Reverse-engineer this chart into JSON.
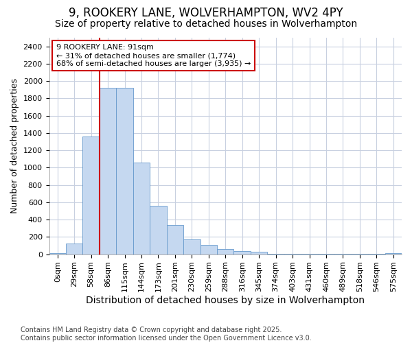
{
  "title_line1": "9, ROOKERY LANE, WOLVERHAMPTON, WV2 4PY",
  "title_line2": "Size of property relative to detached houses in Wolverhampton",
  "xlabel": "Distribution of detached houses by size in Wolverhampton",
  "ylabel": "Number of detached properties",
  "bar_color": "#c5d8f0",
  "bar_edge_color": "#6699cc",
  "background_color": "#ffffff",
  "plot_bg_color": "#ffffff",
  "grid_color": "#c8d0e0",
  "categories": [
    "0sqm",
    "29sqm",
    "58sqm",
    "86sqm",
    "115sqm",
    "144sqm",
    "173sqm",
    "201sqm",
    "230sqm",
    "259sqm",
    "288sqm",
    "316sqm",
    "345sqm",
    "374sqm",
    "403sqm",
    "431sqm",
    "460sqm",
    "489sqm",
    "518sqm",
    "546sqm",
    "575sqm"
  ],
  "values": [
    10,
    125,
    1360,
    1920,
    1920,
    1055,
    560,
    335,
    170,
    110,
    60,
    38,
    30,
    5,
    5,
    3,
    5,
    2,
    2,
    2,
    10
  ],
  "vline_x_index": 3,
  "vline_color": "#cc0000",
  "annotation_text": "9 ROOKERY LANE: 91sqm\n← 31% of detached houses are smaller (1,774)\n68% of semi-detached houses are larger (3,935) →",
  "annotation_box_color": "#ffffff",
  "annotation_box_edge_color": "#cc0000",
  "ylim": [
    0,
    2500
  ],
  "yticks": [
    0,
    200,
    400,
    600,
    800,
    1000,
    1200,
    1400,
    1600,
    1800,
    2000,
    2200,
    2400
  ],
  "footnote": "Contains HM Land Registry data © Crown copyright and database right 2025.\nContains public sector information licensed under the Open Government Licence v3.0.",
  "title_fontsize": 12,
  "subtitle_fontsize": 10,
  "xlabel_fontsize": 10,
  "ylabel_fontsize": 9,
  "tick_fontsize": 8,
  "annotation_fontsize": 8,
  "footnote_fontsize": 7
}
